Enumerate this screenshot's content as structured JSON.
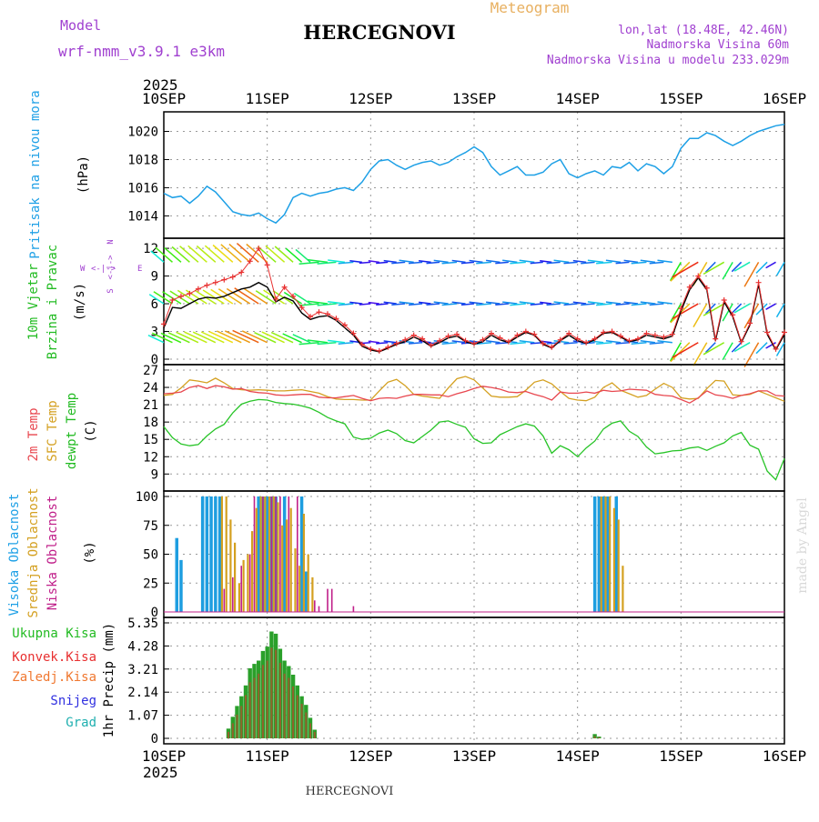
{
  "header": {
    "model_label": "Model",
    "model_name": "wrf-nmm_v3.9.1 e3km",
    "station": "HERCEGNOVI",
    "product": "Meteogram",
    "location": "lon,lat (18.48E, 42.46N)",
    "elevation": "Nadmorska Visina 60m",
    "model_elevation": "Nadmorska Visina u modelu 233.029m"
  },
  "time_axis": {
    "year": "2025",
    "labels": [
      "10SEP",
      "11SEP",
      "12SEP",
      "13SEP",
      "14SEP",
      "15SEP",
      "16SEP"
    ],
    "start_hour": 0,
    "end_hour": 144
  },
  "footer": {
    "station": "HERCEGNOVI",
    "credit": "made by Angel"
  },
  "colors": {
    "pressure": "#1ea0e6",
    "temp2m": "#e8474f",
    "sfc_temp": "#d4a020",
    "dewpt": "#27c427",
    "wind_speed_obs": "#e83030",
    "high_cloud": "#1e9ee0",
    "mid_cloud": "#d4a020",
    "low_cloud": "#c0208a",
    "total_precip": "#2aa02a",
    "convective_precip": "#e83030"
  },
  "chart_data": [
    {
      "id": "pressure",
      "type": "line",
      "ylabel_left": "Pritisak na nivou mora",
      "ylabel_unit": "(hPa)",
      "ylim": [
        1012.8,
        1021.0
      ],
      "yticks": [
        1014,
        1016,
        1018,
        1020
      ],
      "x_hours": [
        0,
        2,
        4,
        6,
        8,
        10,
        12,
        14,
        16,
        18,
        20,
        22,
        24,
        26,
        28,
        30,
        32,
        34,
        36,
        38,
        40,
        42,
        44,
        46,
        48,
        50,
        52,
        54,
        56,
        58,
        60,
        62,
        64,
        66,
        68,
        70,
        72,
        74,
        76,
        78,
        80,
        82,
        84,
        86,
        88,
        90,
        92,
        94,
        96,
        98,
        100,
        102,
        104,
        106,
        108,
        110,
        112,
        114,
        116,
        118,
        120,
        122,
        124,
        126,
        128,
        130,
        132,
        134,
        136,
        138,
        140,
        142,
        144
      ],
      "series": [
        {
          "name": "Pritisak",
          "values": [
            1015.6,
            1015.3,
            1015.4,
            1014.9,
            1015.4,
            1016.1,
            1015.7,
            1015.0,
            1014.3,
            1014.1,
            1014.0,
            1014.2,
            1013.8,
            1013.5,
            1014.1,
            1015.3,
            1015.6,
            1015.4,
            1015.6,
            1015.7,
            1015.9,
            1016.0,
            1015.8,
            1016.4,
            1017.3,
            1017.9,
            1018.0,
            1017.6,
            1017.3,
            1017.6,
            1017.8,
            1017.9,
            1017.6,
            1017.8,
            1018.2,
            1018.5,
            1018.9,
            1018.5,
            1017.5,
            1016.9,
            1017.2,
            1017.5,
            1016.9,
            1016.9,
            1017.1,
            1017.7,
            1018.0,
            1017.0,
            1016.7,
            1017.0,
            1017.2,
            1016.9,
            1017.5,
            1017.4,
            1017.8,
            1017.2,
            1017.7,
            1017.5,
            1017.0,
            1017.5,
            1018.8,
            1019.5,
            1019.5,
            1019.9,
            1019.7,
            1019.3,
            1019.0,
            1019.3,
            1019.7,
            1020.0,
            1020.2,
            1020.4,
            1020.5
          ]
        }
      ]
    },
    {
      "id": "wind",
      "type": "line",
      "ylabel_left": "10m Vjetar",
      "ylabel_left2": "Brzina i Pravac",
      "ylabel_unit": "(m/s)",
      "compass": {
        "n": "N",
        "s": "S",
        "e": "E",
        "w": "W"
      },
      "ylim": [
        0,
        12.5
      ],
      "yticks": [
        0,
        3,
        6,
        9,
        12
      ],
      "x_hours": [
        0,
        2,
        4,
        6,
        8,
        10,
        12,
        14,
        16,
        18,
        20,
        22,
        24,
        26,
        28,
        30,
        32,
        34,
        36,
        38,
        40,
        42,
        44,
        46,
        48,
        50,
        52,
        54,
        56,
        58,
        60,
        62,
        64,
        66,
        68,
        70,
        72,
        74,
        76,
        78,
        80,
        82,
        84,
        86,
        88,
        90,
        92,
        94,
        96,
        98,
        100,
        102,
        104,
        106,
        108,
        110,
        112,
        114,
        116,
        118,
        120,
        122,
        124,
        126,
        128,
        130,
        132,
        134,
        136,
        138,
        140,
        142,
        144
      ],
      "series": [
        {
          "name": "Brzina (model)",
          "values": [
            3.4,
            5.6,
            5.5,
            6.0,
            6.5,
            6.7,
            6.6,
            6.8,
            7.2,
            7.6,
            7.8,
            8.3,
            7.8,
            6.2,
            6.7,
            6.3,
            5.0,
            4.3,
            4.6,
            4.7,
            4.2,
            3.4,
            2.6,
            1.4,
            1.0,
            0.8,
            1.2,
            1.6,
            1.9,
            2.4,
            2.0,
            1.4,
            1.8,
            2.3,
            2.5,
            1.9,
            1.6,
            1.9,
            2.6,
            2.1,
            1.8,
            2.4,
            2.9,
            2.6,
            1.6,
            1.2,
            2.0,
            2.6,
            2.0,
            1.7,
            2.1,
            2.8,
            2.9,
            2.4,
            1.9,
            2.1,
            2.6,
            2.4,
            2.2,
            2.5,
            5.2,
            7.5,
            8.8,
            7.5,
            2.0,
            6.2,
            4.6,
            1.8,
            3.7,
            8.1,
            2.7,
            1.0,
            2.7
          ]
        },
        {
          "name": "Brzina (+)",
          "values": [
            3.8,
            6.4,
            6.8,
            7.1,
            7.6,
            8.0,
            8.3,
            8.6,
            8.9,
            9.4,
            10.6,
            12.0,
            10.2,
            6.5,
            7.8,
            6.8,
            5.6,
            4.6,
            5.1,
            4.9,
            4.4,
            3.7,
            2.8,
            1.6,
            1.1,
            0.9,
            1.3,
            1.7,
            2.1,
            2.6,
            2.2,
            1.5,
            2.0,
            2.5,
            2.7,
            2.0,
            1.7,
            2.1,
            2.8,
            2.3,
            1.9,
            2.6,
            3.0,
            2.7,
            1.7,
            1.3,
            2.1,
            2.8,
            2.2,
            1.8,
            2.2,
            2.9,
            3.0,
            2.5,
            2.0,
            2.2,
            2.8,
            2.6,
            2.4,
            2.7,
            5.5,
            7.8,
            9.0,
            7.7,
            2.2,
            6.4,
            4.8,
            1.9,
            3.9,
            8.3,
            2.9,
            1.1,
            2.9
          ]
        }
      ],
      "barb_rows_ms": [
        1.8,
        6.0,
        10.5
      ]
    },
    {
      "id": "temperature",
      "type": "line",
      "ylabel_left": "2m Temp",
      "ylabel_left2": "SFC Temp",
      "ylabel_left3": "dewpt Temp",
      "ylabel_unit": "(C)",
      "ylim": [
        7,
        27
      ],
      "yticks": [
        9,
        12,
        15,
        18,
        21,
        24,
        27
      ],
      "x_hours": [
        0,
        2,
        4,
        6,
        8,
        10,
        12,
        14,
        16,
        18,
        20,
        22,
        24,
        26,
        28,
        30,
        32,
        34,
        36,
        38,
        40,
        42,
        44,
        46,
        48,
        50,
        52,
        54,
        56,
        58,
        60,
        62,
        64,
        66,
        68,
        70,
        72,
        74,
        76,
        78,
        80,
        82,
        84,
        86,
        88,
        90,
        92,
        94,
        96,
        98,
        100,
        102,
        104,
        106,
        108,
        110,
        112,
        114,
        116,
        118,
        120,
        122,
        124,
        126,
        128,
        130,
        132,
        134,
        136,
        138,
        140,
        142,
        144
      ],
      "series": [
        {
          "name": "2m Temp",
          "values": [
            22.9,
            23.0,
            23.2,
            24.0,
            24.3,
            23.8,
            24.3,
            24.1,
            23.7,
            23.8,
            23.3,
            23.1,
            23.0,
            22.7,
            22.6,
            22.7,
            22.8,
            22.8,
            22.3,
            22.2,
            22.2,
            22.4,
            22.6,
            22.1,
            21.7,
            22.1,
            22.2,
            22.1,
            22.5,
            22.8,
            22.8,
            22.7,
            22.7,
            22.4,
            22.9,
            23.3,
            23.8,
            24.2,
            24.0,
            23.7,
            23.2,
            23.1,
            23.3,
            22.8,
            22.4,
            21.8,
            23.2,
            23.0,
            23.0,
            23.2,
            23.0,
            23.5,
            23.3,
            23.4,
            23.7,
            23.6,
            23.5,
            22.8,
            22.6,
            22.5,
            21.9,
            21.3,
            22.2,
            23.4,
            22.7,
            22.5,
            22.1,
            22.6,
            22.9,
            23.4,
            23.4,
            22.6,
            22.5
          ]
        },
        {
          "name": "SFC Temp",
          "values": [
            22.6,
            22.8,
            23.9,
            25.3,
            25.1,
            24.8,
            25.6,
            24.8,
            23.8,
            23.6,
            23.5,
            23.6,
            23.5,
            23.4,
            23.4,
            23.5,
            23.6,
            23.3,
            23.0,
            22.4,
            22.0,
            21.9,
            21.9,
            21.8,
            21.8,
            23.4,
            24.9,
            25.4,
            24.3,
            22.8,
            22.5,
            22.3,
            22.1,
            23.9,
            25.5,
            25.9,
            25.3,
            23.9,
            22.5,
            22.3,
            22.3,
            22.4,
            23.5,
            24.9,
            25.3,
            24.6,
            23.3,
            22.1,
            21.8,
            21.7,
            22.3,
            24.0,
            24.8,
            23.5,
            22.9,
            22.3,
            22.6,
            23.7,
            24.7,
            24.0,
            22.2,
            22.0,
            22.1,
            23.8,
            25.2,
            25.1,
            22.7,
            22.6,
            22.8,
            23.4,
            22.8,
            22.2,
            21.6
          ]
        },
        {
          "name": "dewpt Temp",
          "values": [
            17.2,
            15.3,
            14.2,
            13.9,
            14.1,
            15.6,
            16.8,
            17.6,
            19.6,
            21.1,
            21.6,
            21.9,
            21.8,
            21.4,
            21.2,
            21.1,
            20.8,
            20.4,
            19.7,
            18.8,
            18.2,
            17.7,
            15.4,
            15.0,
            15.2,
            16.1,
            16.6,
            16.0,
            14.8,
            14.4,
            15.5,
            16.6,
            18.0,
            18.2,
            17.6,
            17.1,
            15.1,
            14.3,
            14.4,
            15.8,
            16.5,
            17.2,
            17.7,
            17.3,
            15.6,
            12.6,
            13.9,
            13.2,
            12.0,
            13.5,
            14.7,
            16.8,
            17.8,
            18.2,
            16.4,
            15.5,
            13.7,
            12.5,
            12.7,
            13.0,
            13.1,
            13.5,
            13.7,
            13.1,
            13.8,
            14.4,
            15.6,
            16.2,
            14.0,
            13.3,
            9.5,
            8.0,
            11.7
          ]
        }
      ]
    },
    {
      "id": "clouds",
      "type": "bar",
      "ylabel_left": "Visoka Oblacnost",
      "ylabel_left2": "Srednja Oblacnost",
      "ylabel_left3": "Niska Oblacnost",
      "ylabel_unit": "(%)",
      "ylim": [
        0,
        100
      ],
      "yticks": [
        0,
        25,
        50,
        75,
        100
      ],
      "series": [
        {
          "name": "Visoka Oblacnost",
          "x_hours": [
            3,
            4,
            9,
            10,
            11,
            12,
            13,
            22,
            23,
            24,
            25,
            26,
            28,
            32,
            33,
            100,
            101,
            102,
            103,
            105
          ],
          "values": [
            64,
            45,
            100,
            100,
            100,
            100,
            100,
            100,
            100,
            100,
            100,
            100,
            100,
            100,
            35,
            100,
            100,
            100,
            100,
            100
          ]
        },
        {
          "name": "Srednja Oblacnost",
          "x_hours": [
            13.5,
            14.5,
            15.5,
            16.5,
            17.5,
            18.5,
            19.5,
            20.5,
            21.5,
            22.5,
            23.5,
            24.5,
            25.5,
            26.5,
            27.5,
            28.5,
            29.5,
            30.5,
            31.5,
            32.5,
            33.5,
            34.5,
            101.5,
            102.5,
            103.5,
            104.5,
            105.5,
            106.5
          ],
          "values": [
            100,
            100,
            80,
            60,
            25,
            45,
            50,
            70,
            90,
            100,
            100,
            100,
            100,
            95,
            75,
            80,
            90,
            55,
            40,
            85,
            50,
            30,
            100,
            100,
            100,
            90,
            80,
            40
          ]
        },
        {
          "name": "Niska Oblacnost",
          "x_hours": [
            14,
            16,
            18,
            20,
            21,
            23,
            25,
            26,
            27,
            29,
            31,
            35,
            36,
            38,
            39,
            44
          ],
          "values": [
            20,
            30,
            40,
            50,
            100,
            100,
            100,
            100,
            100,
            100,
            100,
            10,
            5,
            20,
            20,
            5
          ]
        }
      ]
    },
    {
      "id": "precip",
      "type": "bar",
      "ylabel_left": "1hr Precip (mm)",
      "legend": [
        "Ukupna Kisa",
        "Konvek.Kisa",
        "Zaledj.Kisa",
        "Snijeg",
        "Grad"
      ],
      "ylim": [
        0,
        5.35
      ],
      "yticks": [
        0,
        1.07,
        2.14,
        3.21,
        4.28,
        5.35
      ],
      "x_hours": [
        15,
        16,
        17,
        18,
        19,
        20,
        21,
        22,
        23,
        24,
        25,
        26,
        27,
        28,
        29,
        30,
        31,
        32,
        33,
        34,
        35,
        100,
        101
      ],
      "total": [
        0.45,
        1.0,
        1.5,
        1.95,
        2.45,
        3.25,
        3.45,
        3.6,
        4.05,
        4.25,
        4.95,
        4.85,
        4.15,
        3.6,
        3.35,
        2.95,
        2.45,
        1.95,
        1.55,
        0.95,
        0.4,
        0.2,
        0.08
      ],
      "convective": [
        0.3,
        0.7,
        1.1,
        1.5,
        2.0,
        2.6,
        2.8,
        3.0,
        3.4,
        3.6,
        4.2,
        4.1,
        3.5,
        3.0,
        2.8,
        2.4,
        2.0,
        1.6,
        1.2,
        0.7,
        0.3,
        0.1,
        0.05
      ]
    }
  ]
}
